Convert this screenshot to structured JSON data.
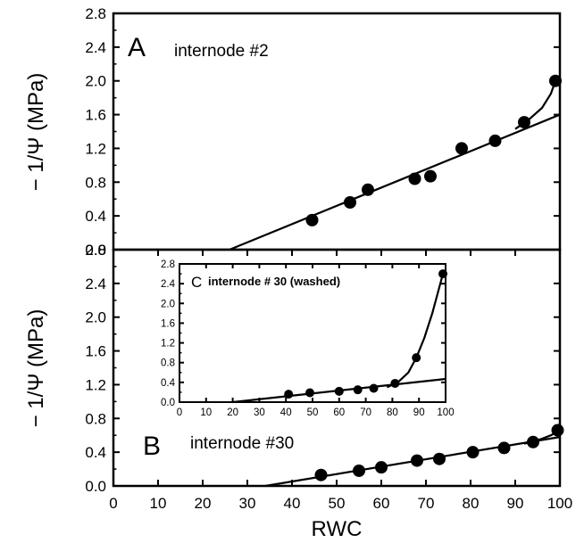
{
  "chart_data": [
    {
      "type": "scatter",
      "panel": "A",
      "title": "internode #2",
      "xlabel": "RWC",
      "ylabel": "− 1/Ψ (MPa)",
      "xlim": [
        0,
        100
      ],
      "ylim": [
        0,
        2.8
      ],
      "yticks": [
        "0.0",
        "0.4",
        "0.8",
        "1.2",
        "1.6",
        "2.0",
        "2.4",
        "2.8"
      ],
      "series": [
        {
          "x": [
            44.5,
            53,
            57,
            67.5,
            71,
            78,
            85.5,
            92,
            99
          ],
          "y": [
            0.35,
            0.56,
            0.71,
            0.84,
            0.87,
            1.2,
            1.29,
            1.51,
            2.0
          ]
        }
      ],
      "linear_fit": {
        "x": [
          26,
          100
        ],
        "y": [
          0,
          1.6
        ]
      },
      "curve_fit": {
        "x": [
          90,
          93,
          96,
          98,
          99
        ],
        "y": [
          1.43,
          1.54,
          1.68,
          1.85,
          2.0
        ]
      }
    },
    {
      "type": "scatter",
      "panel": "B",
      "title": "internode #30",
      "xlabel": "RWC",
      "ylabel": "− 1/Ψ (MPa)",
      "xlim": [
        0,
        100
      ],
      "ylim": [
        0,
        2.8
      ],
      "xticks": [
        "0",
        "10",
        "20",
        "30",
        "40",
        "50",
        "60",
        "70",
        "80",
        "90",
        "100"
      ],
      "yticks": [
        "0.0",
        "0.4",
        "0.8",
        "1.2",
        "1.6",
        "2.0",
        "2.4",
        "2.8"
      ],
      "series": [
        {
          "x": [
            46.5,
            55,
            60,
            68,
            73,
            80.5,
            87.5,
            94,
            99.5
          ],
          "y": [
            0.13,
            0.18,
            0.22,
            0.3,
            0.32,
            0.4,
            0.45,
            0.52,
            0.66
          ]
        }
      ],
      "linear_fit": {
        "x": [
          34,
          100
        ],
        "y": [
          0,
          0.58
        ]
      },
      "curve_fit": {
        "x": [
          92,
          96,
          98,
          100
        ],
        "y": [
          0.5,
          0.56,
          0.6,
          0.66
        ]
      }
    },
    {
      "type": "scatter",
      "panel": "C",
      "title": "internode # 30 (washed)",
      "xlim": [
        0,
        100
      ],
      "ylim": [
        0,
        2.8
      ],
      "xticks": [
        "0",
        "10",
        "20",
        "30",
        "40",
        "50",
        "60",
        "70",
        "80",
        "90",
        "100"
      ],
      "yticks": [
        "0.0",
        "0.4",
        "0.8",
        "1.2",
        "1.6",
        "2.0",
        "2.4",
        "2.8"
      ],
      "series": [
        {
          "x": [
            41,
            49,
            60,
            67,
            73,
            81,
            89,
            99
          ],
          "y": [
            0.16,
            0.19,
            0.22,
            0.25,
            0.28,
            0.38,
            0.9,
            2.6
          ]
        }
      ],
      "linear_fit": {
        "x": [
          20,
          100
        ],
        "y": [
          0,
          0.47
        ]
      },
      "curve_fit": {
        "x": [
          78,
          82,
          86,
          89,
          92,
          95,
          97,
          99
        ],
        "y": [
          0.3,
          0.4,
          0.6,
          0.9,
          1.3,
          1.8,
          2.2,
          2.6
        ]
      }
    }
  ]
}
